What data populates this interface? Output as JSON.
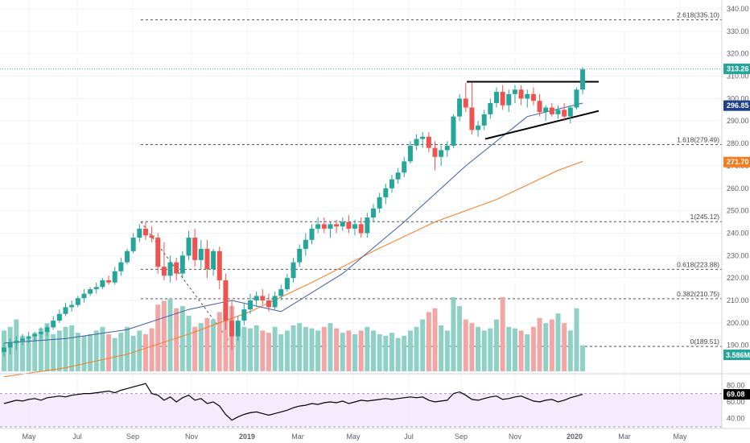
{
  "chart_data": {
    "type": "candlestick",
    "price_axis": {
      "ticks": [
        190,
        200,
        210,
        220,
        230,
        240,
        250,
        260,
        270,
        280,
        290,
        300,
        310,
        320,
        330,
        340
      ],
      "tick_labels": [
        "190.00",
        "200.00",
        "210.00",
        "220.00",
        "230.00",
        "240.00",
        "250.00",
        "260.00",
        "270.00",
        "280.00",
        "290.00",
        "300.00",
        "310.00",
        "320.00",
        "330.00",
        "340.00"
      ],
      "ylim": [
        184,
        342
      ]
    },
    "time_axis": {
      "labels": [
        "May",
        "Jul",
        "Sep",
        "Nov",
        "2019",
        "Mar",
        "May",
        "Jul",
        "Sep",
        "Nov",
        "2020",
        "Mar",
        "May"
      ],
      "bold": [
        "2019",
        "2020"
      ]
    },
    "badges": {
      "last_price": {
        "text": "313.26",
        "value": 313.26,
        "color": "#26a69a"
      },
      "ma_fast": {
        "text": "296.85",
        "value": 296.85,
        "color": "#1e3f8a"
      },
      "ma_slow": {
        "text": "271.70",
        "value": 271.7,
        "color": "#f57c20"
      },
      "volume": {
        "text": "3.586M",
        "color": "#26a69a"
      },
      "rsi": {
        "text": "69.08",
        "color": "#000000"
      }
    },
    "fib_levels": [
      {
        "label": "2.618(335.10)",
        "value": 335.1
      },
      {
        "label": "1.618(279.49)",
        "value": 279.49
      },
      {
        "label": "1(245.12)",
        "value": 245.12
      },
      {
        "label": "0.618(223.88)",
        "value": 223.88
      },
      {
        "label": "0.382(210.75)",
        "value": 210.75
      },
      {
        "label": "0(189.51)",
        "value": 189.51
      }
    ],
    "candles": [
      [
        187,
        191,
        185,
        189
      ],
      [
        189,
        193,
        186,
        191
      ],
      [
        191,
        194,
        188,
        192
      ],
      [
        192,
        195,
        190,
        193
      ],
      [
        193,
        196,
        191,
        194
      ],
      [
        194,
        196,
        192,
        195
      ],
      [
        195,
        198,
        193,
        196
      ],
      [
        196,
        199,
        194,
        198
      ],
      [
        198,
        203,
        197,
        201
      ],
      [
        201,
        206,
        200,
        204
      ],
      [
        204,
        209,
        203,
        207
      ],
      [
        207,
        210,
        205,
        208
      ],
      [
        208,
        212,
        207,
        211
      ],
      [
        211,
        215,
        209,
        213
      ],
      [
        213,
        216,
        212,
        215
      ],
      [
        215,
        218,
        213,
        216
      ],
      [
        216,
        220,
        215,
        219
      ],
      [
        219,
        221,
        217,
        218
      ],
      [
        218,
        225,
        217,
        223
      ],
      [
        223,
        229,
        221,
        227
      ],
      [
        227,
        233,
        226,
        232
      ],
      [
        232,
        240,
        231,
        238
      ],
      [
        238,
        244,
        236,
        242
      ],
      [
        242,
        245,
        237,
        239
      ],
      [
        239,
        243,
        236,
        238
      ],
      [
        238,
        240,
        222,
        225
      ],
      [
        225,
        236,
        219,
        221
      ],
      [
        221,
        230,
        218,
        227
      ],
      [
        227,
        229,
        219,
        222
      ],
      [
        222,
        232,
        220,
        230
      ],
      [
        230,
        241,
        228,
        238
      ],
      [
        238,
        242,
        225,
        228
      ],
      [
        228,
        237,
        224,
        233
      ],
      [
        233,
        237,
        220,
        224
      ],
      [
        224,
        233,
        221,
        232
      ],
      [
        232,
        234,
        215,
        219
      ],
      [
        219,
        222,
        197,
        201
      ],
      [
        201,
        210,
        188,
        194
      ],
      [
        194,
        203,
        192,
        201
      ],
      [
        201,
        209,
        199,
        206
      ],
      [
        206,
        213,
        204,
        210
      ],
      [
        210,
        214,
        207,
        212
      ],
      [
        212,
        215,
        208,
        210
      ],
      [
        210,
        213,
        205,
        207
      ],
      [
        207,
        214,
        206,
        212
      ],
      [
        212,
        217,
        210,
        215
      ],
      [
        215,
        222,
        214,
        220
      ],
      [
        220,
        229,
        218,
        227
      ],
      [
        227,
        235,
        225,
        233
      ],
      [
        233,
        240,
        230,
        237
      ],
      [
        237,
        244,
        235,
        242
      ],
      [
        242,
        247,
        240,
        244
      ],
      [
        244,
        247,
        240,
        242
      ],
      [
        242,
        245,
        238,
        244
      ],
      [
        244,
        246,
        240,
        243
      ],
      [
        243,
        247,
        241,
        245
      ],
      [
        245,
        248,
        240,
        242
      ],
      [
        242,
        246,
        239,
        244
      ],
      [
        244,
        247,
        238,
        240
      ],
      [
        240,
        249,
        238,
        247
      ],
      [
        247,
        253,
        245,
        251
      ],
      [
        251,
        258,
        249,
        256
      ],
      [
        256,
        262,
        253,
        260
      ],
      [
        260,
        266,
        258,
        264
      ],
      [
        264,
        269,
        262,
        267
      ],
      [
        267,
        274,
        265,
        272
      ],
      [
        272,
        281,
        271,
        279
      ],
      [
        279,
        284,
        277,
        282
      ],
      [
        282,
        285,
        278,
        283
      ],
      [
        283,
        285,
        276,
        278
      ],
      [
        278,
        281,
        268,
        274
      ],
      [
        274,
        279,
        270,
        277
      ],
      [
        277,
        281,
        274,
        279
      ],
      [
        279,
        293,
        278,
        292
      ],
      [
        292,
        302,
        290,
        300
      ],
      [
        300,
        307,
        294,
        296
      ],
      [
        296,
        307,
        284,
        286
      ],
      [
        286,
        290,
        283,
        288
      ],
      [
        288,
        295,
        286,
        293
      ],
      [
        293,
        300,
        291,
        298
      ],
      [
        298,
        305,
        296,
        303
      ],
      [
        303,
        306,
        295,
        297
      ],
      [
        297,
        304,
        294,
        302
      ],
      [
        302,
        306,
        298,
        304
      ],
      [
        304,
        306,
        297,
        300
      ],
      [
        300,
        304,
        296,
        302
      ],
      [
        302,
        305,
        297,
        299
      ],
      [
        299,
        302,
        292,
        294
      ],
      [
        294,
        297,
        290,
        296
      ],
      [
        296,
        298,
        292,
        293
      ],
      [
        293,
        297,
        291,
        295
      ],
      [
        295,
        298,
        290,
        292
      ],
      [
        292,
        297,
        289,
        296
      ],
      [
        296,
        305,
        295,
        304
      ],
      [
        304,
        314,
        302,
        313
      ]
    ],
    "ma_fast": [
      [
        0,
        191
      ],
      [
        10,
        193
      ],
      [
        20,
        197
      ],
      [
        30,
        206
      ],
      [
        37,
        210
      ],
      [
        45,
        205
      ],
      [
        55,
        222
      ],
      [
        65,
        245
      ],
      [
        75,
        270
      ],
      [
        85,
        292
      ],
      [
        94,
        298
      ]
    ],
    "ma_slow": [
      [
        0,
        176
      ],
      [
        10,
        180
      ],
      [
        20,
        186
      ],
      [
        30,
        195
      ],
      [
        40,
        205
      ],
      [
        50,
        218
      ],
      [
        60,
        232
      ],
      [
        70,
        245
      ],
      [
        80,
        255
      ],
      [
        90,
        268
      ],
      [
        94,
        272
      ]
    ],
    "volumes": [
      0.55,
      0.6,
      0.7,
      0.48,
      0.45,
      0.52,
      0.58,
      0.65,
      0.5,
      0.55,
      0.6,
      0.62,
      0.52,
      0.48,
      0.5,
      0.55,
      0.6,
      0.5,
      0.45,
      0.52,
      0.6,
      0.48,
      0.55,
      0.5,
      0.58,
      0.9,
      0.95,
      0.98,
      0.85,
      0.88,
      0.75,
      0.6,
      0.65,
      0.72,
      0.7,
      0.8,
      0.95,
      0.88,
      0.55,
      0.6,
      0.58,
      0.62,
      0.55,
      0.52,
      0.6,
      0.5,
      0.55,
      0.62,
      0.65,
      0.6,
      0.58,
      0.55,
      0.6,
      0.65,
      0.58,
      0.52,
      0.55,
      0.5,
      0.55,
      0.6,
      0.55,
      0.5,
      0.48,
      0.52,
      0.45,
      0.48,
      0.55,
      0.6,
      0.7,
      0.8,
      0.85,
      0.62,
      0.55,
      1.0,
      0.88,
      0.7,
      0.65,
      0.6,
      0.55,
      0.58,
      0.7,
      1.0,
      0.6,
      0.58,
      0.55,
      0.5,
      0.6,
      0.72,
      0.65,
      0.7,
      0.78,
      0.65,
      0.55,
      0.85,
      0.35
    ],
    "rsi": {
      "ticks": [
        40,
        60,
        80
      ],
      "tick_labels": [
        "40.00",
        "60.00",
        "80.00"
      ],
      "ylim": [
        30,
        88
      ],
      "values": [
        58,
        60,
        62,
        61,
        63,
        64,
        62,
        65,
        66,
        67,
        66,
        68,
        69,
        70,
        70,
        71,
        72,
        73,
        71,
        74,
        76,
        78,
        80,
        82,
        70,
        68,
        62,
        66,
        60,
        65,
        68,
        62,
        64,
        58,
        60,
        55,
        45,
        38,
        42,
        45,
        47,
        48,
        46,
        44,
        46,
        48,
        50,
        53,
        55,
        56,
        58,
        57,
        59,
        60,
        59,
        61,
        58,
        60,
        62,
        61,
        62,
        63,
        64,
        63,
        64,
        65,
        66,
        65,
        66,
        62,
        60,
        61,
        62,
        70,
        72,
        68,
        63,
        62,
        64,
        66,
        67,
        63,
        64,
        66,
        67,
        64,
        61,
        60,
        62,
        63,
        60,
        62,
        65,
        67,
        69.08
      ]
    }
  }
}
